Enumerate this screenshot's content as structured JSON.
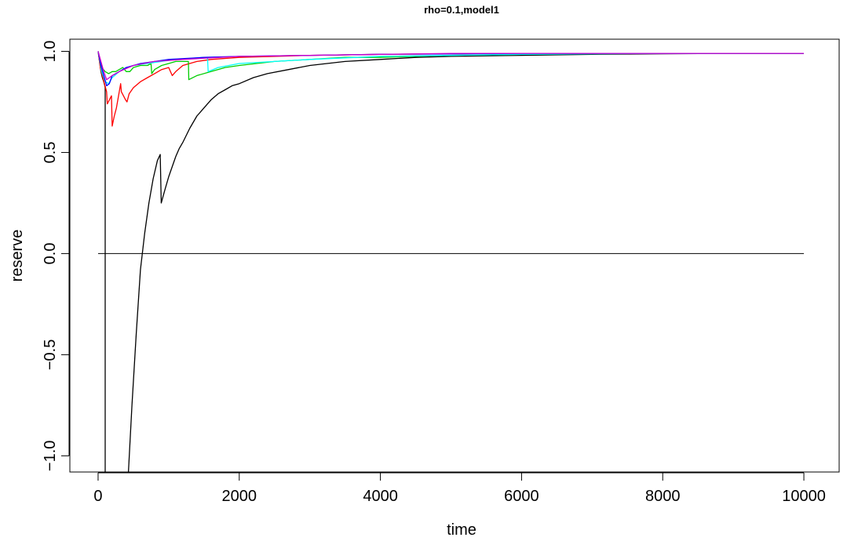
{
  "chart_data": {
    "type": "line",
    "title": "rho=0.1,model1",
    "xlabel": "time",
    "ylabel": "reserve",
    "xlim": [
      -400,
      10500
    ],
    "ylim": [
      -1.08,
      1.06
    ],
    "x_ticks": [
      0,
      2000,
      4000,
      6000,
      8000,
      10000
    ],
    "x_tick_labels": [
      "0",
      "2000",
      "4000",
      "6000",
      "8000",
      "10000"
    ],
    "y_ticks": [
      -1.0,
      -0.5,
      0.0,
      0.5,
      1.0
    ],
    "y_tick_labels": [
      "−1.0",
      "−0.5",
      "0.0",
      "0.5",
      "1.0"
    ],
    "grid": false,
    "hline": {
      "y": 0.0,
      "x_from": 0,
      "x_to": 10000,
      "color": "#000000"
    },
    "series": [
      {
        "color": "#000000",
        "x": [
          0,
          20,
          40,
          60,
          80,
          95,
          100,
          100
        ],
        "y": [
          1.0,
          0.95,
          0.9,
          0.87,
          0.85,
          0.83,
          0.82,
          -1.08
        ]
      },
      {
        "color": "#000000",
        "x": [
          430,
          480,
          540,
          600,
          660,
          720,
          780,
          840,
          880,
          895,
          950,
          1000,
          1050,
          1100,
          1150,
          1200,
          1300,
          1400,
          1500,
          1600,
          1700,
          1800,
          1900,
          2000,
          2200,
          2400,
          2700,
          3000,
          3500,
          4000,
          4500,
          5000,
          6000,
          7000,
          8000,
          9000,
          10000
        ],
        "y": [
          -1.08,
          -0.75,
          -0.4,
          -0.08,
          0.1,
          0.25,
          0.37,
          0.46,
          0.49,
          0.25,
          0.32,
          0.38,
          0.43,
          0.48,
          0.52,
          0.55,
          0.62,
          0.68,
          0.72,
          0.76,
          0.79,
          0.81,
          0.83,
          0.84,
          0.87,
          0.89,
          0.91,
          0.93,
          0.95,
          0.96,
          0.97,
          0.975,
          0.98,
          0.985,
          0.988,
          0.99,
          0.99
        ]
      },
      {
        "color": "#ff0000",
        "x": [
          0,
          30,
          60,
          90,
          120,
          130,
          160,
          190,
          200,
          230,
          260,
          300,
          320,
          330,
          360,
          390,
          410,
          440,
          500,
          600,
          700,
          800,
          900,
          1000,
          1050,
          1100,
          1200,
          1400,
          1600,
          2000,
          3000,
          4000,
          6000,
          8000,
          10000
        ],
        "y": [
          1.0,
          0.92,
          0.88,
          0.84,
          0.8,
          0.74,
          0.76,
          0.78,
          0.63,
          0.68,
          0.72,
          0.8,
          0.84,
          0.8,
          0.78,
          0.76,
          0.75,
          0.79,
          0.82,
          0.85,
          0.87,
          0.89,
          0.91,
          0.92,
          0.88,
          0.9,
          0.93,
          0.95,
          0.96,
          0.97,
          0.98,
          0.985,
          0.99,
          0.99,
          0.99
        ]
      },
      {
        "color": "#00cd00",
        "x": [
          0,
          50,
          100,
          150,
          200,
          250,
          300,
          350,
          400,
          450,
          500,
          600,
          700,
          750,
          760,
          800,
          900,
          1000,
          1100,
          1200,
          1280,
          1285,
          1400,
          1600,
          1800,
          2000,
          2500,
          3000,
          3500,
          4000,
          4500,
          5000,
          6000,
          8000,
          10000
        ],
        "y": [
          1.0,
          0.92,
          0.9,
          0.89,
          0.9,
          0.9,
          0.91,
          0.92,
          0.9,
          0.9,
          0.92,
          0.93,
          0.93,
          0.94,
          0.89,
          0.91,
          0.93,
          0.94,
          0.95,
          0.95,
          0.95,
          0.86,
          0.88,
          0.9,
          0.92,
          0.93,
          0.95,
          0.96,
          0.97,
          0.97,
          0.975,
          0.98,
          0.985,
          0.99,
          0.99
        ]
      },
      {
        "color": "#00ffff",
        "x": [
          0,
          50,
          100,
          150,
          200,
          300,
          400,
          500,
          700,
          900,
          1100,
          1300,
          1500,
          1550,
          1560,
          1700,
          2000,
          3000,
          4000,
          6000,
          8000,
          10000
        ],
        "y": [
          1.0,
          0.9,
          0.85,
          0.84,
          0.87,
          0.9,
          0.92,
          0.93,
          0.94,
          0.95,
          0.96,
          0.965,
          0.97,
          0.97,
          0.9,
          0.92,
          0.94,
          0.96,
          0.975,
          0.985,
          0.99,
          0.99
        ]
      },
      {
        "color": "#0000ff",
        "x": [
          0,
          40,
          80,
          120,
          160,
          200,
          300,
          400,
          600,
          800,
          1000,
          1500,
          2000,
          3000,
          4000,
          6000,
          8000,
          10000
        ],
        "y": [
          1.0,
          0.93,
          0.88,
          0.83,
          0.84,
          0.88,
          0.9,
          0.92,
          0.94,
          0.95,
          0.96,
          0.97,
          0.975,
          0.98,
          0.985,
          0.99,
          0.99,
          0.99
        ]
      },
      {
        "color": "#cc00cc",
        "x": [
          0,
          40,
          80,
          120,
          200,
          300,
          500,
          800,
          1200,
          2000,
          3000,
          5000,
          8000,
          10000
        ],
        "y": [
          1.0,
          0.95,
          0.9,
          0.86,
          0.88,
          0.9,
          0.93,
          0.95,
          0.96,
          0.975,
          0.98,
          0.99,
          0.99,
          0.99
        ]
      }
    ]
  }
}
